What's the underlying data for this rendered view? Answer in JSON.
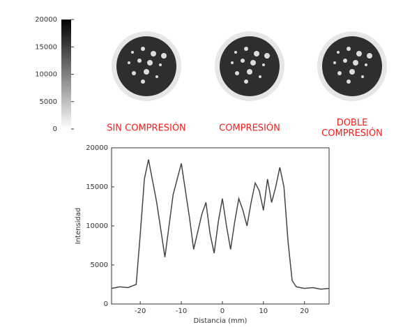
{
  "colorbar": {
    "ylim": [
      0,
      20000
    ],
    "yticks": [
      0,
      5000,
      10000,
      15000,
      20000
    ]
  },
  "images": [
    {
      "label": [
        "SIN COMPRESIÓN"
      ]
    },
    {
      "label": [
        "COMPRESIÓN"
      ]
    },
    {
      "label": [
        "DOBLE",
        "COMPRESIÓN"
      ]
    }
  ],
  "chart_data": {
    "type": "line",
    "xlabel": "Distancia (mm)",
    "ylabel": "Intensidad",
    "x": [
      -27,
      -25,
      -23,
      -21,
      -20,
      -19,
      -18,
      -16,
      -14,
      -12,
      -10,
      -8,
      -7,
      -5,
      -4,
      -3,
      -2,
      -1,
      0,
      1,
      2,
      3,
      4,
      5,
      6,
      7,
      8,
      9,
      10,
      11,
      12,
      13,
      14,
      15,
      16,
      17,
      18,
      20,
      22,
      24,
      26
    ],
    "series": [
      {
        "color": "#444444",
        "values": [
          2000,
          2200,
          2100,
          2500,
          9000,
          16000,
          18500,
          13000,
          6000,
          14000,
          18000,
          11000,
          7000,
          11500,
          13000,
          9000,
          6500,
          10500,
          13500,
          10000,
          7000,
          10500,
          13500,
          12000,
          10000,
          13000,
          15500,
          14500,
          12000,
          16000,
          13000,
          15000,
          17500,
          15000,
          8000,
          3000,
          2200,
          2000,
          2100,
          1900,
          2000
        ]
      }
    ],
    "xlim": [
      -27,
      26
    ],
    "ylim": [
      0,
      20000
    ],
    "xticks": [
      -20,
      -10,
      0,
      10,
      20
    ],
    "yticks": [
      0,
      5000,
      10000,
      15000,
      20000
    ]
  }
}
